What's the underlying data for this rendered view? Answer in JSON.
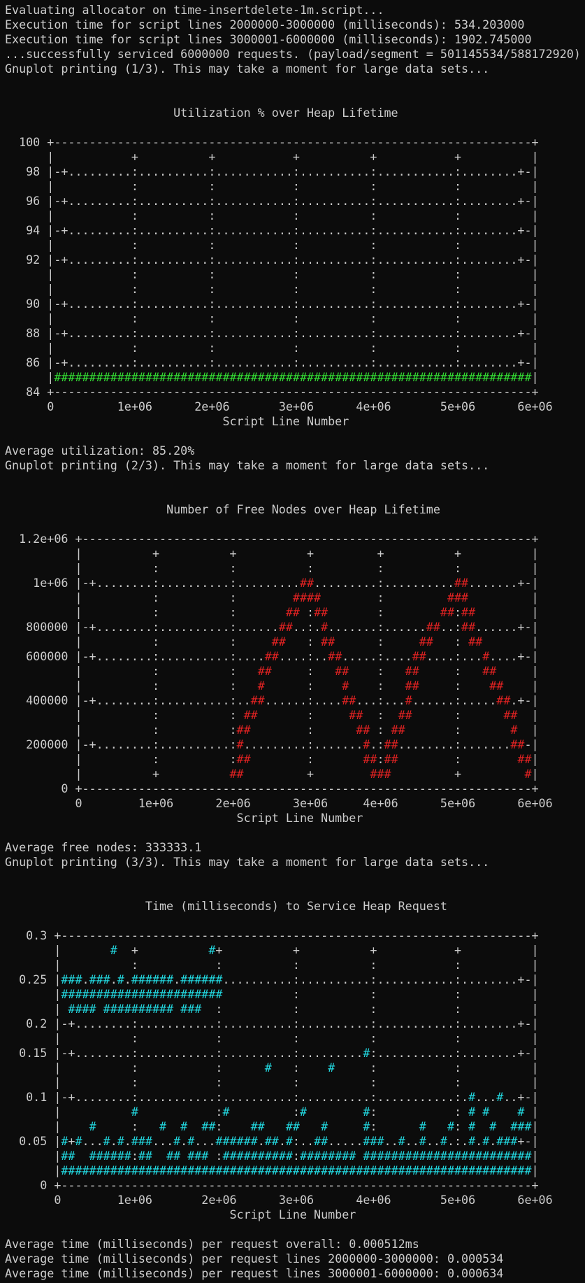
{
  "terminal": {
    "header": [
      "Evaluating allocator on time-insertdelete-1m.script...",
      "Execution time for script lines 2000000-3000000 (milliseconds): 534.203000",
      "Execution time for script lines 3000001-6000000 (milliseconds): 1902.745000",
      "...successfully serviced 6000000 requests. (payload/segment = 501145534/588172920)",
      "Gnuplot printing (1/3). This may take a moment for large data sets..."
    ],
    "plots": [
      {
        "title": "Utilization % over Heap Lifetime",
        "mark_color": "#33dd33",
        "rows": [
          "  100 +--------------------------------------------------------------------+",
          "      |           +          +           +          +           +          |",
          "   98 |-+.........:..........:...........:..........:...........:........+-|",
          "      |           :          :           :          :           :          |",
          "   96 |-+.........:..........:...........:..........:...........:........+-|",
          "      |           :          :           :          :           :          |",
          "   94 |-+.........:..........:...........:..........:...........:........+-|",
          "      |           :          :           :          :           :          |",
          "   92 |-+.........:..........:...........:..........:...........:........+-|",
          "      |           :          :           :          :           :          |",
          "      |           :          :           :          :           :          |",
          "   90 |-+.........:..........:...........:..........:...........:........+-|",
          "      |           :          :           :          :           :          |",
          "   88 |-+.........:..........:...........:..........:...........:........+-|",
          "      |           :          :           :          :           :          |",
          "   86 |-+.........:..........:...........:..........:...........:........+-|",
          "      |####################################################################|",
          "   84 +--------------------------------------------------------------------+"
        ],
        "x_tick_row": "      0         1e+06      2e+06       3e+06      4e+06       5e+06      6e+06",
        "x_label": "Script Line Number",
        "after": [
          "Average utilization: 85.20%",
          "Gnuplot printing (2/3). This may take a moment for large data sets..."
        ]
      },
      {
        "title": "Number of Free Nodes over Heap Lifetime",
        "mark_color": "#e02222",
        "rows": [
          "  1.2e+06 +----------------------------------------------------------------+",
          "          |          +          +          +         +          +          |",
          "          |          :          :          :         :          :          |",
          "    1e+06 |-+........:..........:.........##.........:..........##.......+-|",
          "          |          :          :        ####        :         ###         |",
          "          |          :          :       ## :##       :        ##:##        |",
          "   800000 |-+........:..........:......##..:.#.......:......##..:##......+-|",
          "          |          :          :     ##   : ##      :     ##   : ##       |",
          "   600000 |-+........:..........:....##....:..##.....:....##....:...#....+-|",
          "          |          :          :   ##     :   ##    :   ##     :   ##     |",
          "          |          :          :   #      :    #    :   ##     :    ##    |",
          "   400000 |-+........:..........:..##......:....##...:...#......:.....##.+-|",
          "          |          :          : ##       :     ##  :  ##      :      ##  |",
          "          |          :          :##        :      ## : ##       :       #  |",
          "   200000 |-+........:..........:#.........:.......#.:##........:.......##-|",
          "          |          :          :##        :       ##:##        :        ##|",
          "          |          +          ##         +        ###         +         #|",
          "        0 +----------------------------------------------------------------+"
        ],
        "x_tick_row": "          0        1e+06      2e+06      3e+06     4e+06      5e+06      6e+06",
        "x_label": "Script Line Number",
        "after": [
          "Average free nodes: 333333.1",
          "Gnuplot printing (3/3). This may take a moment for large data sets..."
        ]
      },
      {
        "title": "Time (milliseconds) to Service Heap Request",
        "mark_color": "#22d8e0",
        "rows": [
          "   0.3 +-------------------------------------------------------------------+",
          "       |       #  +          #+          +          +           +          |",
          "       |          :           :          :          :           :          |",
          "  0.25 |###.###.#.######.######..........:..........:...........:........+-|",
          "       |#######################          :          :           :          |",
          "       | #### ########## ###  :          :          :           :          |",
          "   0.2 |-+........:...........:..........:..........:...........:........+-|",
          "       |          :           :          :          :           :          |",
          "  0.15 |-+........:...........:..........:.........#:...........:........+-|",
          "       |          :           :      #   :    #     :           :          |",
          "       |          :           :          :          :           :          |",
          "   0.1 |-+........:...........:..........:..........:...........:.#...#..+-|",
          "       |          #           :#         :#        #:           : # #    # |",
          "       |    #     :   #  #  ##:    ##   ##   #     #:      #   #: #  #  ###|",
          "  0.05 |#+#...#.#.###...#.#...######.##.#:..##.....###..#..#..#.:.#.#.###+-|",
          "       |##  ######:##  ## ### :##########:######## ########################|",
          "       |###################################################################|",
          "     0 +-------------------------------------------------------------------+"
        ],
        "x_tick_row": "       0        1e+06       2e+06      3e+06      4e+06       5e+06      6e+06",
        "x_label": "Script Line Number",
        "after": [
          "Average time (milliseconds) per request overall: 0.000512ms",
          "Average time (milliseconds) per request lines 2000000-3000000: 0.000534",
          "Average time (milliseconds) per request lines 3000001-6000000: 0.000634"
        ]
      }
    ]
  }
}
